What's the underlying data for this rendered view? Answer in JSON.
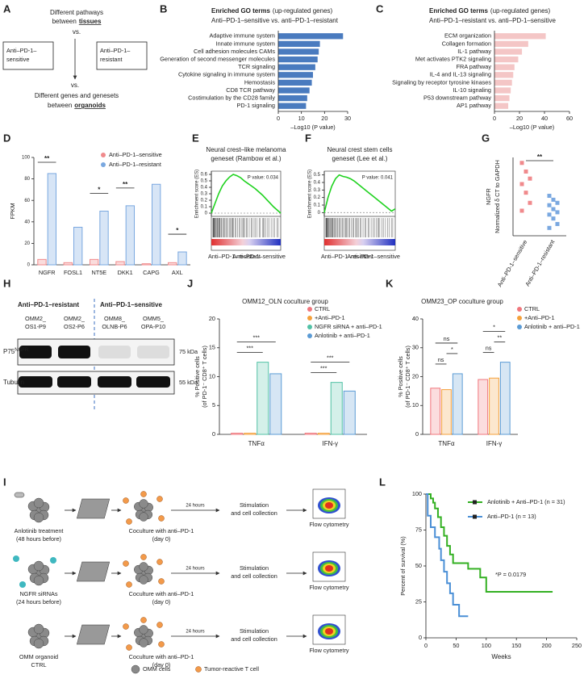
{
  "panels": {
    "a": {
      "letter": "A",
      "top": [
        "Different pathways",
        "between"
      ],
      "top_bold": "tissues",
      "vs_top": "vs.",
      "sensitive": [
        "Anti–PD-1–",
        "sensitive"
      ],
      "resistant": [
        "Anti–PD-1–",
        "resistant"
      ],
      "vs_bottom": "vs.",
      "bottom": [
        "Different genes and genesets",
        "between"
      ],
      "bottom_bold": "organoids"
    },
    "b": {
      "letter": "B",
      "type": "hbar",
      "title": "Enriched GO terms",
      "title_note": "(up-regulated genes)",
      "subtitle": "Anti–PD-1–sensitive vs. anti–PD-1–resistant",
      "color": "#4a7bbf",
      "categories": [
        "Adaptive immune system",
        "Innate immune system",
        "Cell adhesion molecules CAMs",
        "Generation of second messenger molecules",
        "TCR signaling",
        "Cytokine signaling in immune system",
        "Hemostasis",
        "CD8 TCR pathway",
        "Costimulation by the CD28 family",
        "PD-1 signaling"
      ],
      "label_colors": [
        "#e3241b",
        "#222222",
        "#222222",
        "#222222",
        "#e3241b",
        "#222222",
        "#222222",
        "#e3241b",
        "#e3241b",
        "#e3241b"
      ],
      "values": [
        28,
        18,
        17.5,
        17,
        16,
        15,
        14.5,
        13.5,
        12.5,
        12
      ],
      "xlim": [
        0,
        30
      ],
      "xticks": [
        0,
        10,
        20,
        30
      ],
      "xlabel": "–Log10 (P value)"
    },
    "c": {
      "letter": "C",
      "type": "hbar",
      "title": "Enriched GO terms",
      "title_note": "(up-regulated genes)",
      "subtitle": "Anti–PD-1–resistant vs. anti–PD-1–sensitive",
      "color": "#f4c6c6",
      "categories": [
        "ECM organization",
        "Collagen formation",
        "IL-1 pathway",
        "Met activates PTK2 signaling",
        "FRA pathway",
        "IL-4 and IL-13 signaling",
        "Signaling by receptor tyrosine kinases",
        "IL-10 signaling",
        "P53 downstream pathway",
        "AP1 pathway"
      ],
      "label_colors": [
        "#e3241b",
        "#222222",
        "#222222",
        "#e3241b",
        "#e3241b",
        "#e3241b",
        "#e3241b",
        "#e3241b",
        "#222222",
        "#222222"
      ],
      "values": [
        41,
        27,
        22,
        19,
        16,
        15,
        14,
        13,
        12,
        11
      ],
      "xlim": [
        0,
        60
      ],
      "xticks": [
        0,
        20,
        40,
        60
      ],
      "xlabel": "–Log10 (P value)"
    },
    "d": {
      "letter": "D",
      "type": "bar",
      "ylabel": "FPKM",
      "categories": [
        "NGFR",
        "FOSL1",
        "NT5E",
        "DKK1",
        "CAPG",
        "AXL"
      ],
      "series": [
        {
          "name": "Anti–PD-1–sensitive",
          "color": "#f08a8c",
          "values": [
            5,
            2,
            5,
            3,
            1,
            2
          ]
        },
        {
          "name": "Anti–PD-1–resistant",
          "color": "#7aa8e0",
          "values": [
            85,
            35,
            50,
            55,
            75,
            12
          ]
        }
      ],
      "ylim": [
        0,
        100
      ],
      "yticks": [
        0,
        20,
        40,
        60,
        80,
        100
      ],
      "significance": [
        {
          "category": 0,
          "label": "**"
        },
        {
          "category": 2,
          "label": "*"
        },
        {
          "category": 3,
          "label": "**"
        },
        {
          "category": 5,
          "label": "*"
        }
      ]
    },
    "e": {
      "letter": "E",
      "type": "gsea",
      "title": [
        "Neural crest–like melanoma",
        "geneset (Rambow et al.)"
      ],
      "p_value": "P value: 0.034",
      "ylabel": "Enrichment score (ES)",
      "es": [
        0,
        0.15,
        0.3,
        0.42,
        0.5,
        0.56,
        0.6,
        0.58,
        0.55,
        0.5,
        0.46,
        0.42,
        0.38,
        0.33,
        0.28,
        0.22,
        0.16,
        0.1,
        0.05,
        0
      ],
      "ylim": [
        -0.05,
        0.65
      ],
      "yticks": [
        0,
        0.1,
        0.2,
        0.3,
        0.4,
        0.5,
        0.6
      ],
      "left_label": "Anti–PD-1–resistant",
      "right_label": "Anti–PD-1–sensitive"
    },
    "f": {
      "letter": "F",
      "type": "gsea",
      "title": [
        "Neural crest stem cells",
        "geneset (Lee et al.)"
      ],
      "p_value": "P value: 0.041",
      "ylabel": "Enrichment score (ES)",
      "es": [
        0,
        0.2,
        0.35,
        0.45,
        0.5,
        0.48,
        0.47,
        0.45,
        0.42,
        0.38,
        0.34,
        0.3,
        0.26,
        0.22,
        0.18,
        0.14,
        0.1,
        0.06,
        0.02,
        0.05
      ],
      "ylim": [
        -0.05,
        0.55
      ],
      "yticks": [
        0,
        0.1,
        0.2,
        0.3,
        0.4,
        0.5
      ],
      "left_label": "Anti–PD-1–resistant",
      "right_label": "Anti–PD-1–sensitive"
    },
    "g": {
      "letter": "G",
      "type": "dot",
      "ylabel": [
        "NGFR",
        "Normalized δ CT to GAPDH"
      ],
      "categories": [
        "Anti–PD-1–sensitive",
        "Anti–PD-1–resistant"
      ],
      "series": [
        {
          "color": "#f08a8c",
          "values": [
            9.3,
            8.2,
            7.3,
            6.6,
            5.5,
            4.2,
            3.2
          ]
        },
        {
          "color": "#7aa8e0",
          "values": [
            5.1,
            4.6,
            4.2,
            3.9,
            3.4,
            3.0,
            2.7,
            2.2,
            1.5,
            1.0
          ]
        }
      ],
      "ylim": [
        0,
        10
      ],
      "significance": "**"
    },
    "h": {
      "letter": "H",
      "resistant": "Anti–PD-1–resistant",
      "sensitive": "Anti–PD-1–sensitive",
      "lanes": [
        [
          "OMM2_",
          "OS1-P9"
        ],
        [
          "OMM2_",
          "OS2-P6"
        ],
        [
          "OMM8_",
          "OLNB-P6"
        ],
        [
          "OMM5_",
          "OPA-P10"
        ]
      ],
      "protein": "P75",
      "protein_sup": "NGFR",
      "control": "Tubulin",
      "marker_top": "75 kDa",
      "marker_bottom": "55 kDa"
    },
    "j": {
      "letter": "J",
      "type": "grouped_bar",
      "title": "OMM12_OLN coculture group",
      "ylabel": "% Positive cells",
      "ylabel2": "(of PD-1⁻ CD8⁺ T cells)",
      "categories": [
        "TNFα",
        "IFN-γ"
      ],
      "series": [
        {
          "name": "CTRL",
          "color": "#f0767c",
          "values": [
            0.2,
            0.2
          ]
        },
        {
          "name": "+Anti–PD-1",
          "color": "#f5a13b",
          "values": [
            0.2,
            0.2
          ]
        },
        {
          "name": "NGFR siRNA + anti–PD-1",
          "color": "#52c2a6",
          "values": [
            12.5,
            9
          ]
        },
        {
          "name": "Anlotinib + anti–PD-1",
          "color": "#5b9bd5",
          "values": [
            10.5,
            7.5
          ]
        }
      ],
      "ylim": [
        0,
        20
      ],
      "yticks": [
        0,
        5,
        10,
        15,
        20
      ],
      "significance": [
        {
          "category": 0,
          "pair": [
            0,
            2
          ],
          "label": "***"
        },
        {
          "category": 0,
          "pair": [
            0,
            3
          ],
          "label": "***"
        },
        {
          "category": 1,
          "pair": [
            0,
            2
          ],
          "label": "***"
        },
        {
          "category": 1,
          "pair": [
            0,
            3
          ],
          "label": "***"
        }
      ]
    },
    "k": {
      "letter": "K",
      "type": "grouped_bar",
      "title": "OMM23_OP coculture group",
      "ylabel": "% Positive cells",
      "ylabel2": "(of PD-1⁻ CD8⁺ T cells)",
      "categories": [
        "TNFα",
        "IFN-γ"
      ],
      "series": [
        {
          "name": "CTRL",
          "color": "#f0767c",
          "values": [
            16,
            19
          ]
        },
        {
          "name": "+Anti–PD-1",
          "color": "#f5a13b",
          "values": [
            15.5,
            19.5
          ]
        },
        {
          "name": "Anlotinib + anti–PD-1",
          "color": "#5b9bd5",
          "values": [
            21,
            25
          ]
        }
      ],
      "ylim": [
        0,
        40
      ],
      "yticks": [
        0,
        10,
        20,
        30,
        40
      ],
      "significance": [
        {
          "category": 0,
          "pair": [
            0,
            1
          ],
          "label": "ns"
        },
        {
          "category": 0,
          "pair": [
            1,
            2
          ],
          "label": "*"
        },
        {
          "category": 0,
          "pair": [
            0,
            2
          ],
          "label": "ns"
        },
        {
          "category": 1,
          "pair": [
            0,
            1
          ],
          "label": "ns"
        },
        {
          "category": 1,
          "pair": [
            1,
            2
          ],
          "label": "**"
        },
        {
          "category": 1,
          "pair": [
            0,
            2
          ],
          "label": "*"
        }
      ]
    },
    "i": {
      "letter": "I",
      "rows": [
        {
          "treatment": [
            "Anlotinib treatment",
            "(48 hours before)"
          ],
          "coculture": [
            "Coculture with anti–PD-1",
            "(day 0)"
          ],
          "time": "24 hours",
          "stimulation": [
            "Stimulation",
            "and cell collection"
          ],
          "readout": "Flow cytometry"
        },
        {
          "treatment": [
            "NGFR siRNAs",
            "(24 hours before)"
          ],
          "coculture": [
            "Coculture with anti–PD-1",
            "(day 0)"
          ],
          "time": "24 hours",
          "stimulation": [
            "Stimulation",
            "and cell collection"
          ],
          "readout": "Flow cytometry"
        },
        {
          "treatment": [
            "OMM organoid",
            "CTRL"
          ],
          "coculture": [
            "Coculture with anti–PD-1",
            "(day 0)"
          ],
          "time": "24 hours",
          "stimulation": [
            "Stimulation",
            "and cell collection"
          ],
          "readout": "Flow cytometry"
        }
      ],
      "legend_cells": "OMM cells",
      "legend_t": "Tumor-reactive T cell"
    },
    "l": {
      "letter": "L",
      "type": "survival",
      "ylabel": "Percent of survival (%)",
      "xlabel": "Weeks",
      "xlim": [
        0,
        250
      ],
      "xticks": [
        0,
        50,
        100,
        150,
        200,
        250
      ],
      "ylim": [
        0,
        100
      ],
      "yticks": [
        0,
        25,
        50,
        75,
        100
      ],
      "series": [
        {
          "name": "Anlotinib + Anti–PD-1 (n = 31)",
          "color": "#33b022",
          "x": [
            0,
            8,
            12,
            15,
            20,
            25,
            30,
            35,
            40,
            45,
            70,
            90,
            100,
            210
          ],
          "values": [
            100,
            97,
            94,
            90,
            84,
            77,
            71,
            64,
            58,
            52,
            48,
            42,
            32,
            32
          ]
        },
        {
          "name": "Anti–PD-1 (n = 13)",
          "color": "#4a8fd6",
          "x": [
            0,
            3,
            8,
            15,
            22,
            25,
            30,
            35,
            40,
            45,
            55,
            70
          ],
          "values": [
            100,
            85,
            77,
            70,
            62,
            54,
            46,
            38,
            31,
            23,
            15,
            15
          ]
        }
      ],
      "annotation": "*P = 0.0179"
    }
  }
}
